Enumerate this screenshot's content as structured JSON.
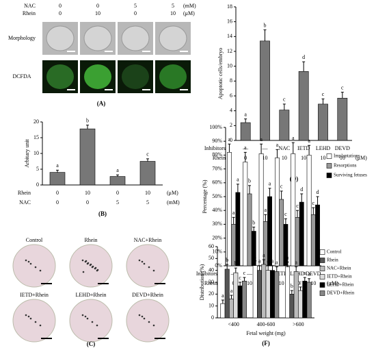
{
  "panel_a": {
    "label": "(A)",
    "rows": [
      {
        "name": "NAC",
        "values": [
          0,
          0,
          5,
          5
        ],
        "unit": "(mM)"
      },
      {
        "name": "Rhein",
        "values": [
          0,
          10,
          0,
          10
        ],
        "unit": "(μM)"
      }
    ],
    "image_rows": [
      "Morphology",
      "DCFDA"
    ]
  },
  "panel_c": {
    "label": "(C)",
    "images": [
      "Control",
      "Rhein",
      "NAC+Rhein",
      "IETD+Rhein",
      "LEHD+Rhein",
      "DEVD+Rhein"
    ]
  },
  "chart_data": [
    {
      "type": "bar",
      "panel": "(B)",
      "ylabel": "Arbitary unit",
      "ylim": [
        0,
        20
      ],
      "yticks": [
        0,
        5,
        10,
        15,
        20
      ],
      "values": [
        4,
        17.8,
        2.7,
        7.5
      ],
      "errors": [
        0.7,
        1.2,
        0.5,
        0.8
      ],
      "letters": [
        "a",
        "b",
        "a",
        "c"
      ],
      "color": "#777777",
      "category_rows": [
        {
          "name": "Rhein",
          "labels": [
            0,
            10,
            0,
            10
          ],
          "unit": "(μM)"
        },
        {
          "name": "NAC",
          "labels": [
            0,
            0,
            5,
            5
          ],
          "unit": "(mM)"
        }
      ]
    },
    {
      "type": "bar",
      "panel": "(D)",
      "ylabel": "Apoptotic cells/embryo",
      "ylim": [
        0,
        18
      ],
      "yticks": [
        0,
        2,
        4,
        6,
        8,
        10,
        12,
        14,
        16,
        18
      ],
      "values": [
        2.4,
        13.4,
        4.1,
        9.3,
        4.9,
        5.7
      ],
      "errors": [
        0.5,
        1.5,
        0.8,
        1.3,
        0.7,
        0.8
      ],
      "letters": [
        "a",
        "b",
        "c",
        "d",
        "c",
        "c"
      ],
      "color": "#777777",
      "category_rows": [
        {
          "name": "Inhibitors",
          "labels": [
            "—",
            "—",
            "NAC",
            "IETD",
            "LEHD",
            "DEVD"
          ]
        },
        {
          "name": "Rhein",
          "labels": [
            0,
            10,
            10,
            10,
            10,
            10
          ],
          "unit": "(μM)"
        }
      ]
    },
    {
      "type": "bar",
      "panel": "(E)",
      "ylabel": "Percentage (%)",
      "ylim": [
        0,
        100
      ],
      "yticks": [
        {
          "value": 0,
          "label": "0%"
        },
        {
          "value": 10,
          "label": "10%"
        },
        {
          "value": 20,
          "label": "20%"
        },
        {
          "value": 30,
          "label": "30%"
        },
        {
          "value": 40,
          "label": "40%"
        },
        {
          "value": 50,
          "label": "50%"
        },
        {
          "value": 60,
          "label": "60%"
        },
        {
          "value": 70,
          "label": "70%"
        },
        {
          "value": 80,
          "label": "80%"
        },
        {
          "value": 90,
          "label": "90%"
        },
        {
          "value": 100,
          "label": "100%"
        }
      ],
      "series": [
        {
          "name": "Implantations",
          "color": "#ffffff",
          "values": [
            82,
            75,
            81,
            78,
            81,
            80
          ],
          "errors": [
            6,
            7,
            7,
            6,
            8,
            7
          ],
          "letters": [
            "a",
            "a",
            "a",
            "a",
            "a",
            "a"
          ]
        },
        {
          "name": "Resorptions",
          "color": "#999999",
          "values": [
            30,
            52,
            32,
            48,
            35,
            37
          ],
          "errors": [
            5,
            6,
            5,
            6,
            5,
            5
          ],
          "letters": [
            "a",
            "b",
            "a",
            "c",
            "c",
            "c"
          ]
        },
        {
          "name": "Surviving fetuses",
          "color": "#000000",
          "values": [
            53,
            25,
            50,
            30,
            46,
            44
          ],
          "errors": [
            6,
            3,
            6,
            4,
            6,
            6
          ],
          "letters": [
            "a",
            "b",
            "a",
            "c",
            "d",
            "d"
          ]
        }
      ],
      "category_rows": [
        {
          "name": "Inhibitors",
          "labels": [
            "—",
            "—",
            "NAC",
            "IETD",
            "LEHD",
            "DEVD"
          ]
        },
        {
          "name": "Rhein",
          "labels": [
            0,
            10,
            10,
            10,
            10,
            10
          ],
          "unit": "(μM)"
        }
      ],
      "legend": "right"
    },
    {
      "type": "bar",
      "panel": "(F)",
      "ylabel": "Distribution (%)",
      "xlabel": "Fetal weight (mg)",
      "ylim": [
        0,
        60
      ],
      "yticks": [
        0,
        10,
        20,
        30,
        40,
        50,
        60
      ],
      "categories": [
        "<400",
        "400-600",
        ">600"
      ],
      "series": [
        {
          "name": "Control",
          "color": "#ffffff",
          "values": [
            12,
            44,
            43
          ],
          "errors": [
            3,
            4,
            4
          ],
          "letters": [
            "a",
            "a",
            "a"
          ]
        },
        {
          "name": "Rhein",
          "color": "#555555",
          "values": [
            41,
            40,
            20
          ],
          "errors": [
            4,
            4,
            3
          ],
          "letters": [
            "b",
            "a",
            "b"
          ]
        },
        {
          "name": "NAC+Rhein",
          "color": "#bbbbbb",
          "values": [
            16,
            45,
            39
          ],
          "errors": [
            3,
            4,
            4
          ],
          "letters": [
            "a",
            "a",
            "a"
          ]
        },
        {
          "name": "IETD+Rhein",
          "color": "#dddddd",
          "values": [
            38,
            40,
            23
          ],
          "errors": [
            4,
            4,
            3
          ],
          "letters": [
            "b",
            "a",
            "c"
          ]
        },
        {
          "name": "LEHD+Rhein",
          "color": "#000000",
          "values": [
            27,
            40,
            31
          ],
          "errors": [
            3,
            4,
            3
          ],
          "letters": [
            "c",
            "a",
            "a"
          ]
        },
        {
          "name": "DEVD+Rhein",
          "color": "#888888",
          "values": [
            31,
            39,
            30
          ],
          "errors": [
            3,
            4,
            3
          ],
          "letters": [
            "c",
            "a",
            "a"
          ]
        }
      ],
      "legend": "right"
    }
  ]
}
